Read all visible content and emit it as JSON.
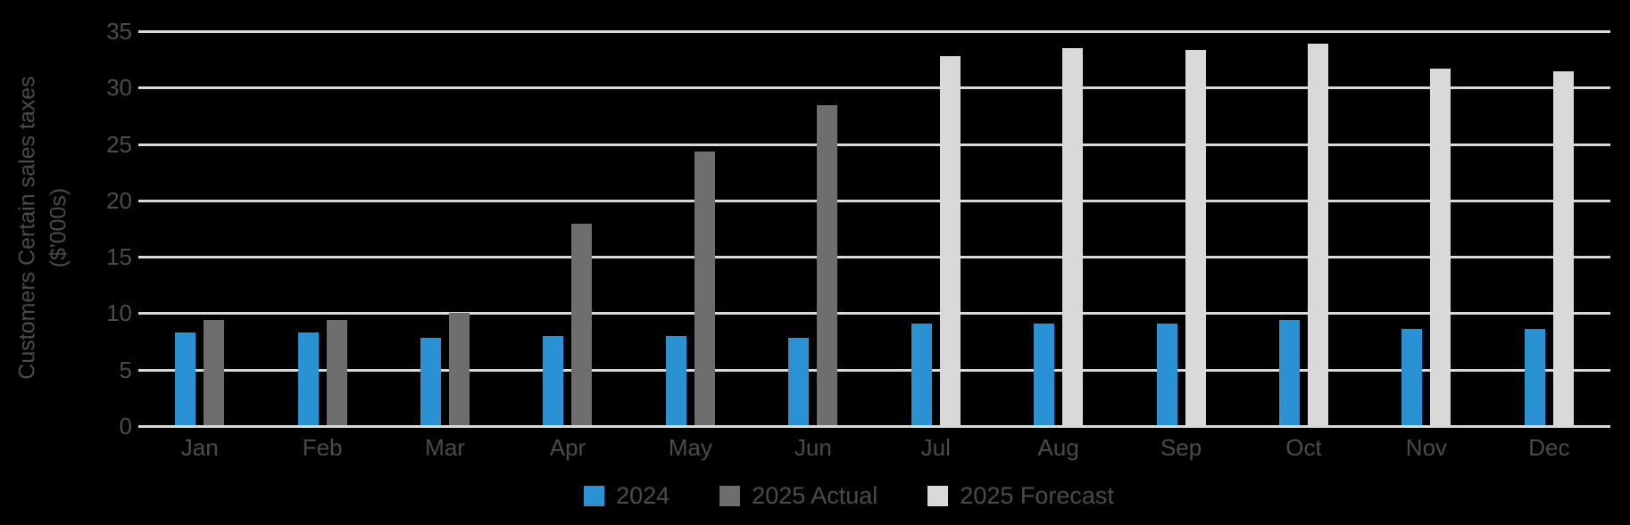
{
  "chart_data": {
    "type": "bar",
    "title": "",
    "ylabel_line1": "Customers Certain sales taxes",
    "ylabel_line2": "($'000s)",
    "categories": [
      "Jan",
      "Feb",
      "Mar",
      "Apr",
      "May",
      "Jun",
      "Jul",
      "Aug",
      "Sep",
      "Oct",
      "Nov",
      "Dec"
    ],
    "y_ticks": [
      35,
      30,
      25,
      20,
      15,
      10,
      5,
      0
    ],
    "ylim": [
      0,
      35
    ],
    "grid": true,
    "legend_position": "bottom",
    "background": "#000000",
    "gridline_color": "#d9d9d9",
    "text_color": "#4b4b4b",
    "series": [
      {
        "name": "2024",
        "key": "2024",
        "color": "#2a91d2",
        "values": [
          8.0,
          8.0,
          7.5,
          7.7,
          7.7,
          7.5,
          8.8,
          8.8,
          8.8,
          9.1,
          8.3,
          8.3
        ]
      },
      {
        "name": "2025 Actual",
        "key": "2025-actual",
        "color": "#6e6e6e",
        "values": [
          9.1,
          9.1,
          9.7,
          17.6,
          24.0,
          28.1,
          null,
          null,
          null,
          null,
          null,
          null
        ]
      },
      {
        "name": "2025 Forecast",
        "key": "2025-forecast",
        "color": "#d9d9d9",
        "values": [
          null,
          null,
          null,
          null,
          null,
          null,
          32.5,
          33.2,
          33.0,
          33.6,
          31.4,
          31.1
        ]
      }
    ]
  },
  "legend": {
    "items": [
      {
        "label": "2024",
        "color": "#2a91d2"
      },
      {
        "label": "2025 Actual",
        "color": "#6e6e6e"
      },
      {
        "label": "2025 Forecast",
        "color": "#d9d9d9"
      }
    ]
  }
}
